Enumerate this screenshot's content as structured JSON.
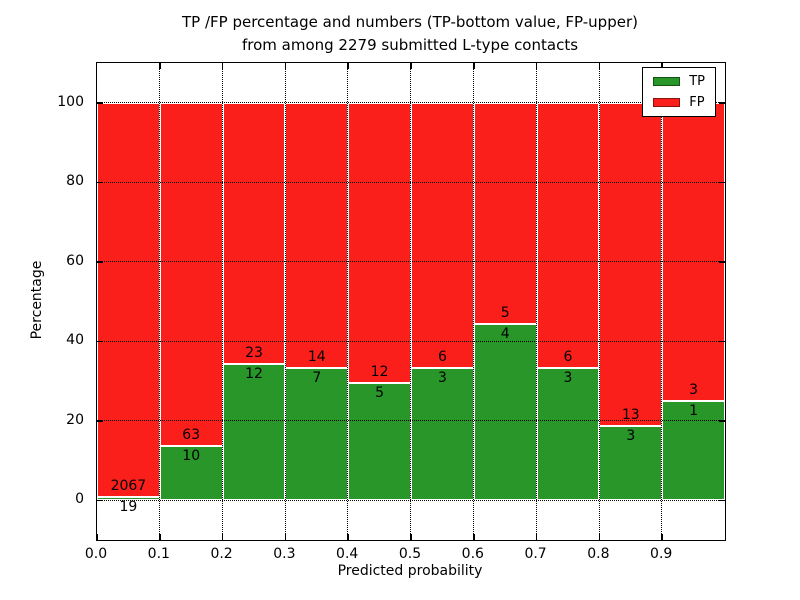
{
  "figure": {
    "background": "#ffffff",
    "title_line1": "TP /FP percentage and numbers (TP-bottom value, FP-upper)",
    "title_line2": "from among 2279 submitted L-type contacts"
  },
  "chart_data": {
    "type": "bar",
    "subtype": "stacked-percentage",
    "title": "TP /FP percentage and numbers (TP-bottom value, FP-upper)\nfrom among 2279 submitted L-type contacts",
    "xlabel": "Predicted probability",
    "ylabel": "Percentage",
    "xlim": [
      0.0,
      1.0
    ],
    "ylim": [
      -10,
      110
    ],
    "grid": true,
    "x_tick_labels": [
      "0.0",
      "0.1",
      "0.2",
      "0.3",
      "0.4",
      "0.5",
      "0.6",
      "0.7",
      "0.8",
      "0.9"
    ],
    "y_tick_values": [
      0,
      20,
      40,
      60,
      80,
      100
    ],
    "categories": [
      "0.0-0.1",
      "0.1-0.2",
      "0.2-0.3",
      "0.3-0.4",
      "0.4-0.5",
      "0.5-0.6",
      "0.6-0.7",
      "0.7-0.8",
      "0.8-0.9",
      "0.9-1.0"
    ],
    "series": [
      {
        "name": "TP",
        "color": "#289628",
        "values": [
          19,
          10,
          12,
          7,
          5,
          3,
          4,
          3,
          3,
          1
        ]
      },
      {
        "name": "FP",
        "color": "#fa1f1b",
        "values": [
          2067,
          63,
          23,
          14,
          12,
          6,
          5,
          6,
          13,
          3
        ]
      }
    ],
    "tp_percent_of_bin": [
      0.91,
      13.7,
      34.29,
      33.33,
      29.41,
      33.33,
      44.44,
      33.33,
      18.75,
      25.0
    ],
    "legend": {
      "position": "upper-right",
      "entries": [
        {
          "label": "TP",
          "color": "#289628"
        },
        {
          "label": "FP",
          "color": "#fa1f1b"
        }
      ]
    }
  }
}
